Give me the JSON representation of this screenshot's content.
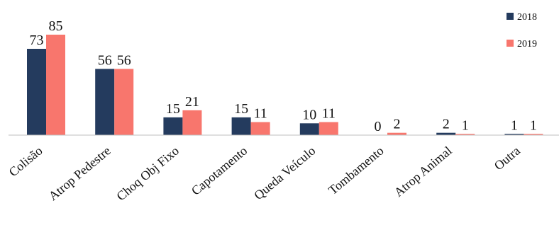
{
  "chart_data": {
    "type": "bar",
    "title": "",
    "xlabel": "",
    "ylabel": "",
    "ylim": [
      0,
      85
    ],
    "grid": false,
    "legend_position": "top-right",
    "categories": [
      "Colisão",
      "Atrop Pedestre",
      "Choq Obj Fixo",
      "Capotamento",
      "Queda Veículo",
      "Tombamento",
      "Atrop Animal",
      "Outra"
    ],
    "series": [
      {
        "name": "2018",
        "values": [
          73,
          56,
          15,
          15,
          10,
          0,
          2,
          1
        ],
        "color": "#243b5e"
      },
      {
        "name": "2019",
        "values": [
          85,
          56,
          21,
          11,
          11,
          2,
          1,
          1
        ],
        "color": "#f8766d"
      }
    ]
  }
}
